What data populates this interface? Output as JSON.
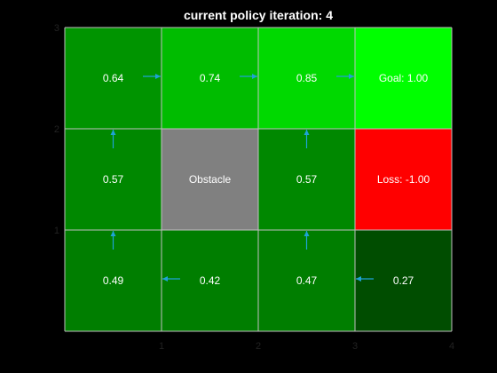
{
  "title": "current policy iteration: 4",
  "grid": {
    "cols": 4,
    "rows": 3,
    "line_color": "#bfbfbf",
    "arrow_color": "#1fa3d6",
    "cells": [
      {
        "row": 0,
        "col": 0,
        "label": "0.64",
        "color": "#009400",
        "arrow": "right"
      },
      {
        "row": 0,
        "col": 1,
        "label": "0.74",
        "color": "#00bc00",
        "arrow": "right"
      },
      {
        "row": 0,
        "col": 2,
        "label": "0.85",
        "color": "#00d900",
        "arrow": "right"
      },
      {
        "row": 0,
        "col": 3,
        "label": "Goal: 1.00",
        "color": "#00ff00",
        "arrow": ""
      },
      {
        "row": 1,
        "col": 0,
        "label": "0.57",
        "color": "#008800",
        "arrow": "up"
      },
      {
        "row": 1,
        "col": 1,
        "label": "Obstacle",
        "color": "#808080",
        "arrow": ""
      },
      {
        "row": 1,
        "col": 2,
        "label": "0.57",
        "color": "#008800",
        "arrow": "up"
      },
      {
        "row": 1,
        "col": 3,
        "label": "Loss: -1.00",
        "color": "#ff0000",
        "arrow": ""
      },
      {
        "row": 2,
        "col": 0,
        "label": "0.49",
        "color": "#007e00",
        "arrow": "up"
      },
      {
        "row": 2,
        "col": 1,
        "label": "0.42",
        "color": "#007e00",
        "arrow": "left"
      },
      {
        "row": 2,
        "col": 2,
        "label": "0.47",
        "color": "#007e00",
        "arrow": "up"
      },
      {
        "row": 2,
        "col": 3,
        "label": "0.27",
        "color": "#004d00",
        "arrow": "left"
      }
    ]
  },
  "axes": {
    "x_ticks": [
      "1",
      "2",
      "3",
      "4"
    ],
    "y_ticks": [
      "3",
      "2",
      "1"
    ]
  }
}
